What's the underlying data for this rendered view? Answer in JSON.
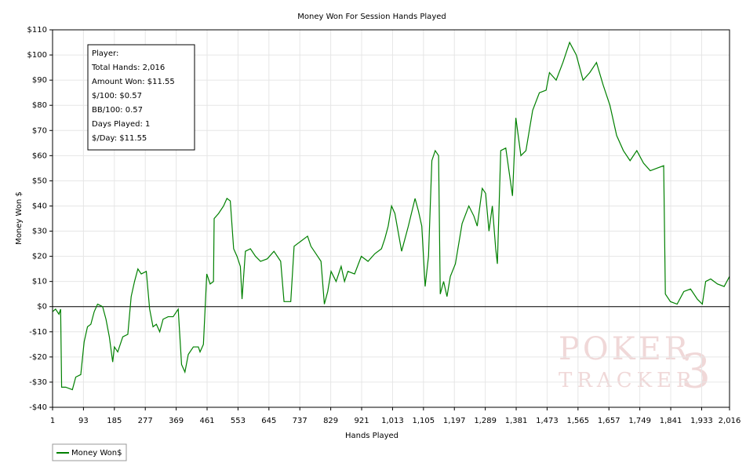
{
  "chart_data": {
    "type": "line",
    "title": "Money Won For Session Hands Played",
    "xlabel": "Hands Played",
    "ylabel": "Money Won $",
    "x": [
      1,
      10,
      20,
      25,
      28,
      40,
      60,
      70,
      85,
      95,
      105,
      115,
      125,
      135,
      150,
      160,
      170,
      180,
      185,
      195,
      210,
      225,
      235,
      245,
      255,
      265,
      280,
      290,
      300,
      310,
      320,
      330,
      345,
      360,
      375,
      385,
      395,
      405,
      420,
      435,
      440,
      450,
      460,
      470,
      480,
      482,
      495,
      510,
      520,
      530,
      540,
      550,
      560,
      565,
      575,
      590,
      605,
      620,
      640,
      660,
      680,
      690,
      710,
      720,
      740,
      760,
      770,
      790,
      800,
      810,
      820,
      830,
      845,
      860,
      870,
      880,
      900,
      920,
      940,
      960,
      980,
      990,
      1000,
      1010,
      1020,
      1040,
      1060,
      1080,
      1090,
      1100,
      1110,
      1120,
      1130,
      1140,
      1150,
      1155,
      1165,
      1175,
      1185,
      1200,
      1220,
      1240,
      1255,
      1265,
      1280,
      1290,
      1300,
      1310,
      1320,
      1325,
      1335,
      1350,
      1370,
      1380,
      1395,
      1410,
      1430,
      1450,
      1470,
      1480,
      1500,
      1520,
      1540,
      1560,
      1580,
      1600,
      1620,
      1640,
      1660,
      1680,
      1700,
      1720,
      1740,
      1760,
      1780,
      1800,
      1820,
      1825,
      1840,
      1860,
      1880,
      1900,
      1920,
      1935,
      1945,
      1960,
      1980,
      2000,
      2016
    ],
    "series": [
      {
        "name": "Money Won$",
        "color": "#008000",
        "values": [
          -2,
          -1,
          -3,
          -1,
          -32,
          -32,
          -33,
          -28,
          -27,
          -14,
          -8,
          -7,
          -2,
          1,
          0,
          -5,
          -12,
          -22,
          -16,
          -18,
          -12,
          -11,
          4,
          10,
          15,
          13,
          14,
          -1,
          -8,
          -7,
          -10,
          -5,
          -4,
          -4,
          -1,
          -23,
          -26,
          -19,
          -16,
          -16,
          -18,
          -15,
          13,
          9,
          10,
          35,
          37,
          40,
          43,
          42,
          23,
          20,
          16,
          3,
          22,
          23,
          20,
          18,
          19,
          22,
          18,
          2,
          2,
          24,
          26,
          28,
          24,
          20,
          18,
          1,
          6,
          14,
          10,
          16,
          10,
          14,
          13,
          20,
          18,
          21,
          23,
          27,
          32,
          40,
          37,
          22,
          32,
          43,
          38,
          32,
          8,
          20,
          58,
          62,
          60,
          5,
          10,
          4,
          12,
          17,
          33,
          40,
          36,
          32,
          47,
          45,
          30,
          40,
          23,
          17,
          62,
          63,
          44,
          75,
          60,
          62,
          78,
          85,
          86,
          93,
          90,
          97,
          105,
          100,
          90,
          93,
          97,
          88,
          80,
          68,
          62,
          58,
          62,
          57,
          54,
          55,
          56,
          5,
          2,
          1,
          6,
          7,
          3,
          1,
          10,
          11,
          9,
          8,
          12
        ]
      }
    ],
    "xlim": [
      1,
      2016
    ],
    "xticks": [
      1,
      93,
      185,
      277,
      369,
      461,
      553,
      645,
      737,
      829,
      921,
      {
        "value": 1013,
        "label": "1,013"
      },
      {
        "value": 1105,
        "label": "1,105"
      },
      {
        "value": 1197,
        "label": "1,197"
      },
      {
        "value": 1289,
        "label": "1,289"
      },
      {
        "value": 1381,
        "label": "1,381"
      },
      {
        "value": 1473,
        "label": "1,473"
      },
      {
        "value": 1565,
        "label": "1,565"
      },
      {
        "value": 1657,
        "label": "1,657"
      },
      {
        "value": 1749,
        "label": "1,749"
      },
      {
        "value": 1841,
        "label": "1,841"
      },
      {
        "value": 1933,
        "label": "1,933"
      },
      {
        "value": 2016,
        "label": "2,016"
      }
    ],
    "ylim": [
      -40,
      110
    ],
    "yticks": [
      {
        "value": -40,
        "label": "-$40"
      },
      {
        "value": -30,
        "label": "-$30"
      },
      {
        "value": -20,
        "label": "-$20"
      },
      {
        "value": -10,
        "label": "-$10"
      },
      {
        "value": 0,
        "label": "$0"
      },
      {
        "value": 10,
        "label": "$10"
      },
      {
        "value": 20,
        "label": "$20"
      },
      {
        "value": 30,
        "label": "$30"
      },
      {
        "value": 40,
        "label": "$40"
      },
      {
        "value": 50,
        "label": "$50"
      },
      {
        "value": 60,
        "label": "$60"
      },
      {
        "value": 70,
        "label": "$70"
      },
      {
        "value": 80,
        "label": "$80"
      },
      {
        "value": 90,
        "label": "$90"
      },
      {
        "value": 100,
        "label": "$100"
      },
      {
        "value": 110,
        "label": "$110"
      }
    ],
    "grid": true,
    "info_box": [
      "Player:",
      "Total Hands: 2,016",
      "Amount Won: $11.55",
      "$/100: $0.57",
      "BB/100: 0.57",
      "Days Played: 1",
      "$/Day: $11.55"
    ],
    "watermark": [
      "POKER",
      "TRACKER"
    ]
  }
}
